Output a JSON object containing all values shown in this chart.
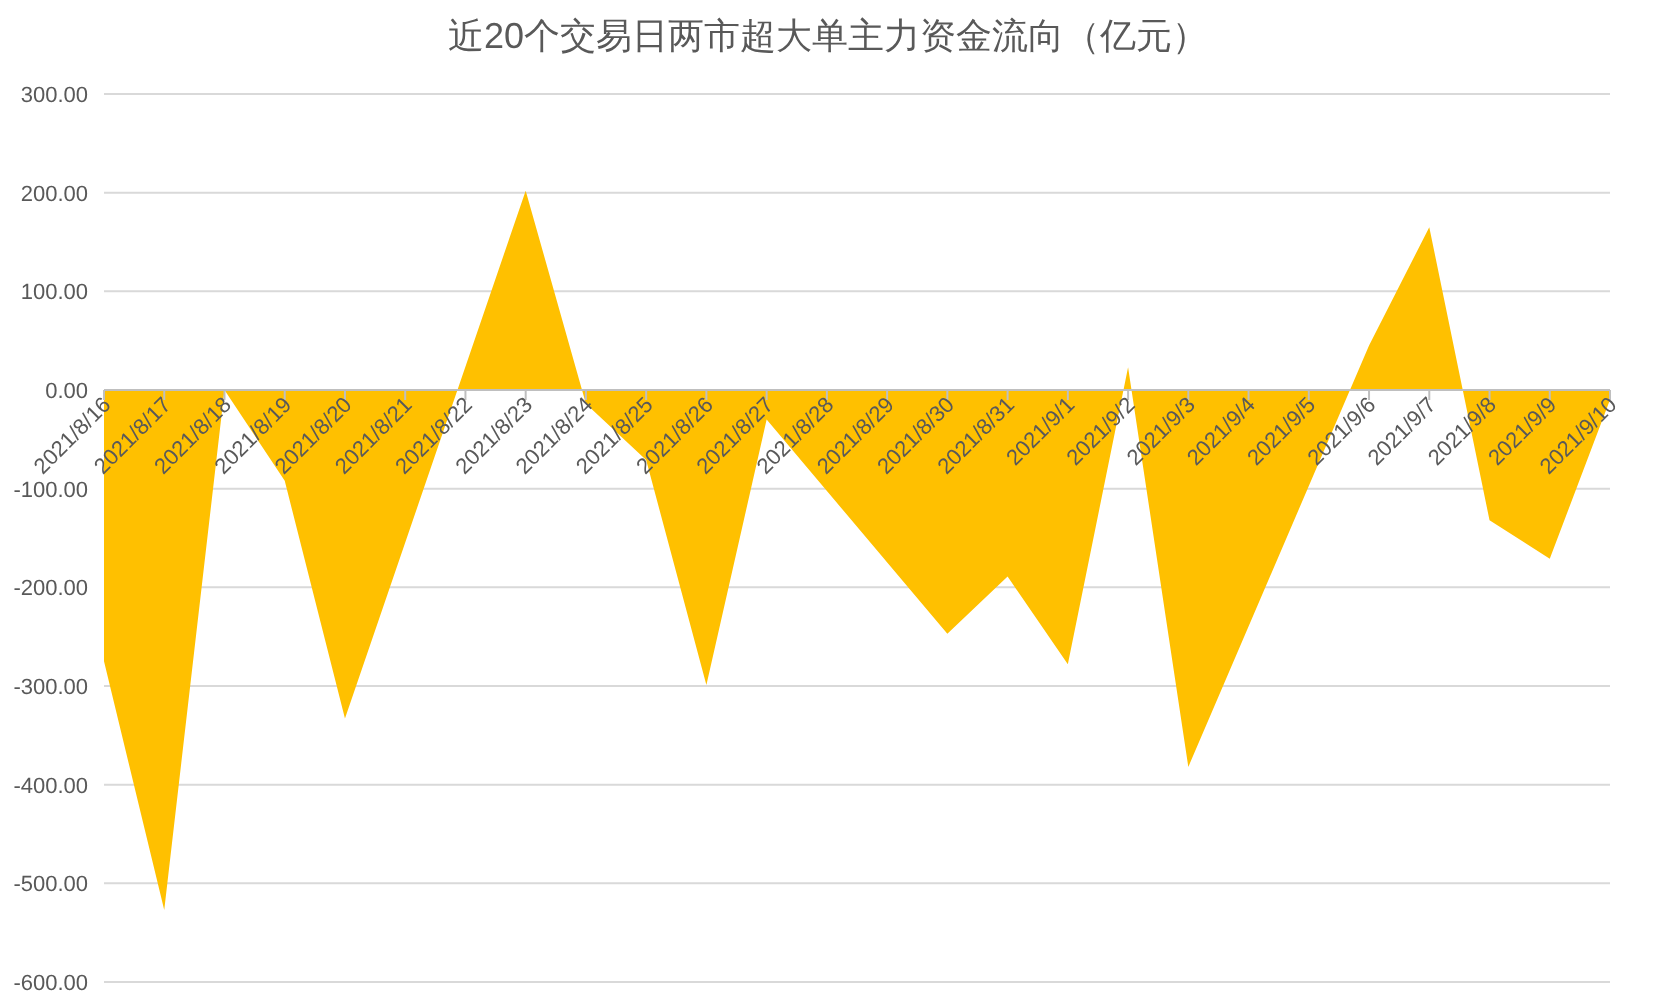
{
  "chart_data": {
    "type": "area",
    "title": "近20个交易日两市超大单主力资金流向（亿元）",
    "x": [
      "2021-08-16",
      "2021-08-17",
      "2021-08-18",
      "2021-08-19",
      "2021-08-20",
      "2021-08-23",
      "2021-08-24",
      "2021-08-25",
      "2021-08-26",
      "2021-08-27",
      "2021-08-30",
      "2021-08-31",
      "2021-09-01",
      "2021-09-02",
      "2021-09-03",
      "2021-09-06",
      "2021-09-07",
      "2021-09-08",
      "2021-09-09",
      "2021-09-10"
    ],
    "series": [
      {
        "color": "#ffc000",
        "values": [
          -275,
          -527,
          0,
          -92,
          -333,
          202,
          -14,
          -71,
          -299,
          -30,
          -247,
          -189,
          -278,
          23,
          -382,
          45,
          165,
          -132,
          -171,
          -10
        ]
      }
    ],
    "xlim": [
      "2021-08-16",
      "2021-09-10"
    ],
    "xticks": [
      {
        "value": "2021-08-16",
        "label": "2021/8/16"
      },
      {
        "value": "2021-08-17",
        "label": "2021/8/17"
      },
      {
        "value": "2021-08-18",
        "label": "2021/8/18"
      },
      {
        "value": "2021-08-19",
        "label": "2021/8/19"
      },
      {
        "value": "2021-08-20",
        "label": "2021/8/20"
      },
      {
        "value": "2021-08-21",
        "label": "2021/8/21"
      },
      {
        "value": "2021-08-22",
        "label": "2021/8/22"
      },
      {
        "value": "2021-08-23",
        "label": "2021/8/23"
      },
      {
        "value": "2021-08-24",
        "label": "2021/8/24"
      },
      {
        "value": "2021-08-25",
        "label": "2021/8/25"
      },
      {
        "value": "2021-08-26",
        "label": "2021/8/26"
      },
      {
        "value": "2021-08-27",
        "label": "2021/8/27"
      },
      {
        "value": "2021-08-28",
        "label": "2021/8/28"
      },
      {
        "value": "2021-08-29",
        "label": "2021/8/29"
      },
      {
        "value": "2021-08-30",
        "label": "2021/8/30"
      },
      {
        "value": "2021-08-31",
        "label": "2021/8/31"
      },
      {
        "value": "2021-09-01",
        "label": "2021/9/1"
      },
      {
        "value": "2021-09-02",
        "label": "2021/9/2"
      },
      {
        "value": "2021-09-03",
        "label": "2021/9/3"
      },
      {
        "value": "2021-09-04",
        "label": "2021/9/4"
      },
      {
        "value": "2021-09-05",
        "label": "2021/9/5"
      },
      {
        "value": "2021-09-06",
        "label": "2021/9/6"
      },
      {
        "value": "2021-09-07",
        "label": "2021/9/7"
      },
      {
        "value": "2021-09-08",
        "label": "2021/9/8"
      },
      {
        "value": "2021-09-09",
        "label": "2021/9/9"
      },
      {
        "value": "2021-09-10",
        "label": "2021/9/10"
      }
    ],
    "ylim": [
      -600,
      300
    ],
    "yticks": [
      {
        "value": 300,
        "label": "300.00"
      },
      {
        "value": 200,
        "label": "200.00"
      },
      {
        "value": 100,
        "label": "100.00"
      },
      {
        "value": 0,
        "label": "0.00"
      },
      {
        "value": -100,
        "label": "-100.00"
      },
      {
        "value": -200,
        "label": "-200.00"
      },
      {
        "value": -300,
        "label": "-300.00"
      },
      {
        "value": -400,
        "label": "-400.00"
      },
      {
        "value": -500,
        "label": "-500.00"
      },
      {
        "value": -600,
        "label": "-600.00"
      }
    ],
    "grid": "y"
  }
}
